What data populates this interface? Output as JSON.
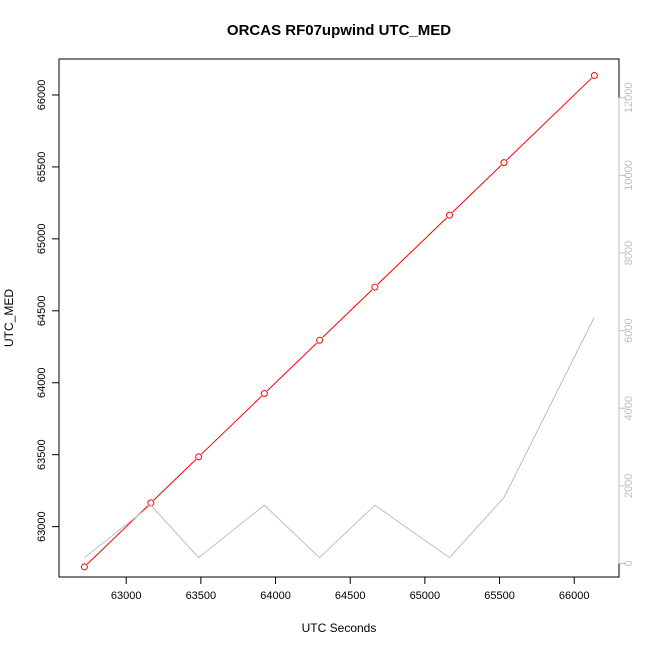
{
  "chart_data": {
    "type": "line",
    "title": "ORCAS RF07upwind UTC_MED",
    "xlabel": "UTC Seconds",
    "ylabel": "UTC_MED",
    "xlim": [
      62550,
      66300
    ],
    "ylim": [
      62650,
      66250
    ],
    "y2lim": [
      -350,
      13000
    ],
    "xticks": [
      63000,
      63500,
      64000,
      64500,
      65000,
      65500,
      66000
    ],
    "yticks": [
      63000,
      63500,
      64000,
      64500,
      65000,
      65500,
      66000
    ],
    "y2ticks": [
      0,
      2000,
      4000,
      6000,
      8000,
      10000,
      12000
    ],
    "grid": false,
    "series": [
      {
        "axis": "left",
        "color": "#ff0000",
        "markers": true,
        "x": [
          62720,
          63165,
          63485,
          63925,
          64295,
          64665,
          65165,
          65530,
          66135
        ],
        "y": [
          62720,
          63165,
          63485,
          63925,
          64295,
          64665,
          65165,
          65530,
          66135
        ]
      },
      {
        "axis": "right",
        "color": "#bebebe",
        "markers": false,
        "x": [
          62720,
          63165,
          63485,
          63925,
          64295,
          64665,
          65165,
          65530,
          66135
        ],
        "y": [
          150,
          1500,
          150,
          1500,
          150,
          1500,
          150,
          1700,
          6350
        ]
      }
    ],
    "colors": {
      "axis": "#000000",
      "right_axis": "#bebebe"
    }
  }
}
